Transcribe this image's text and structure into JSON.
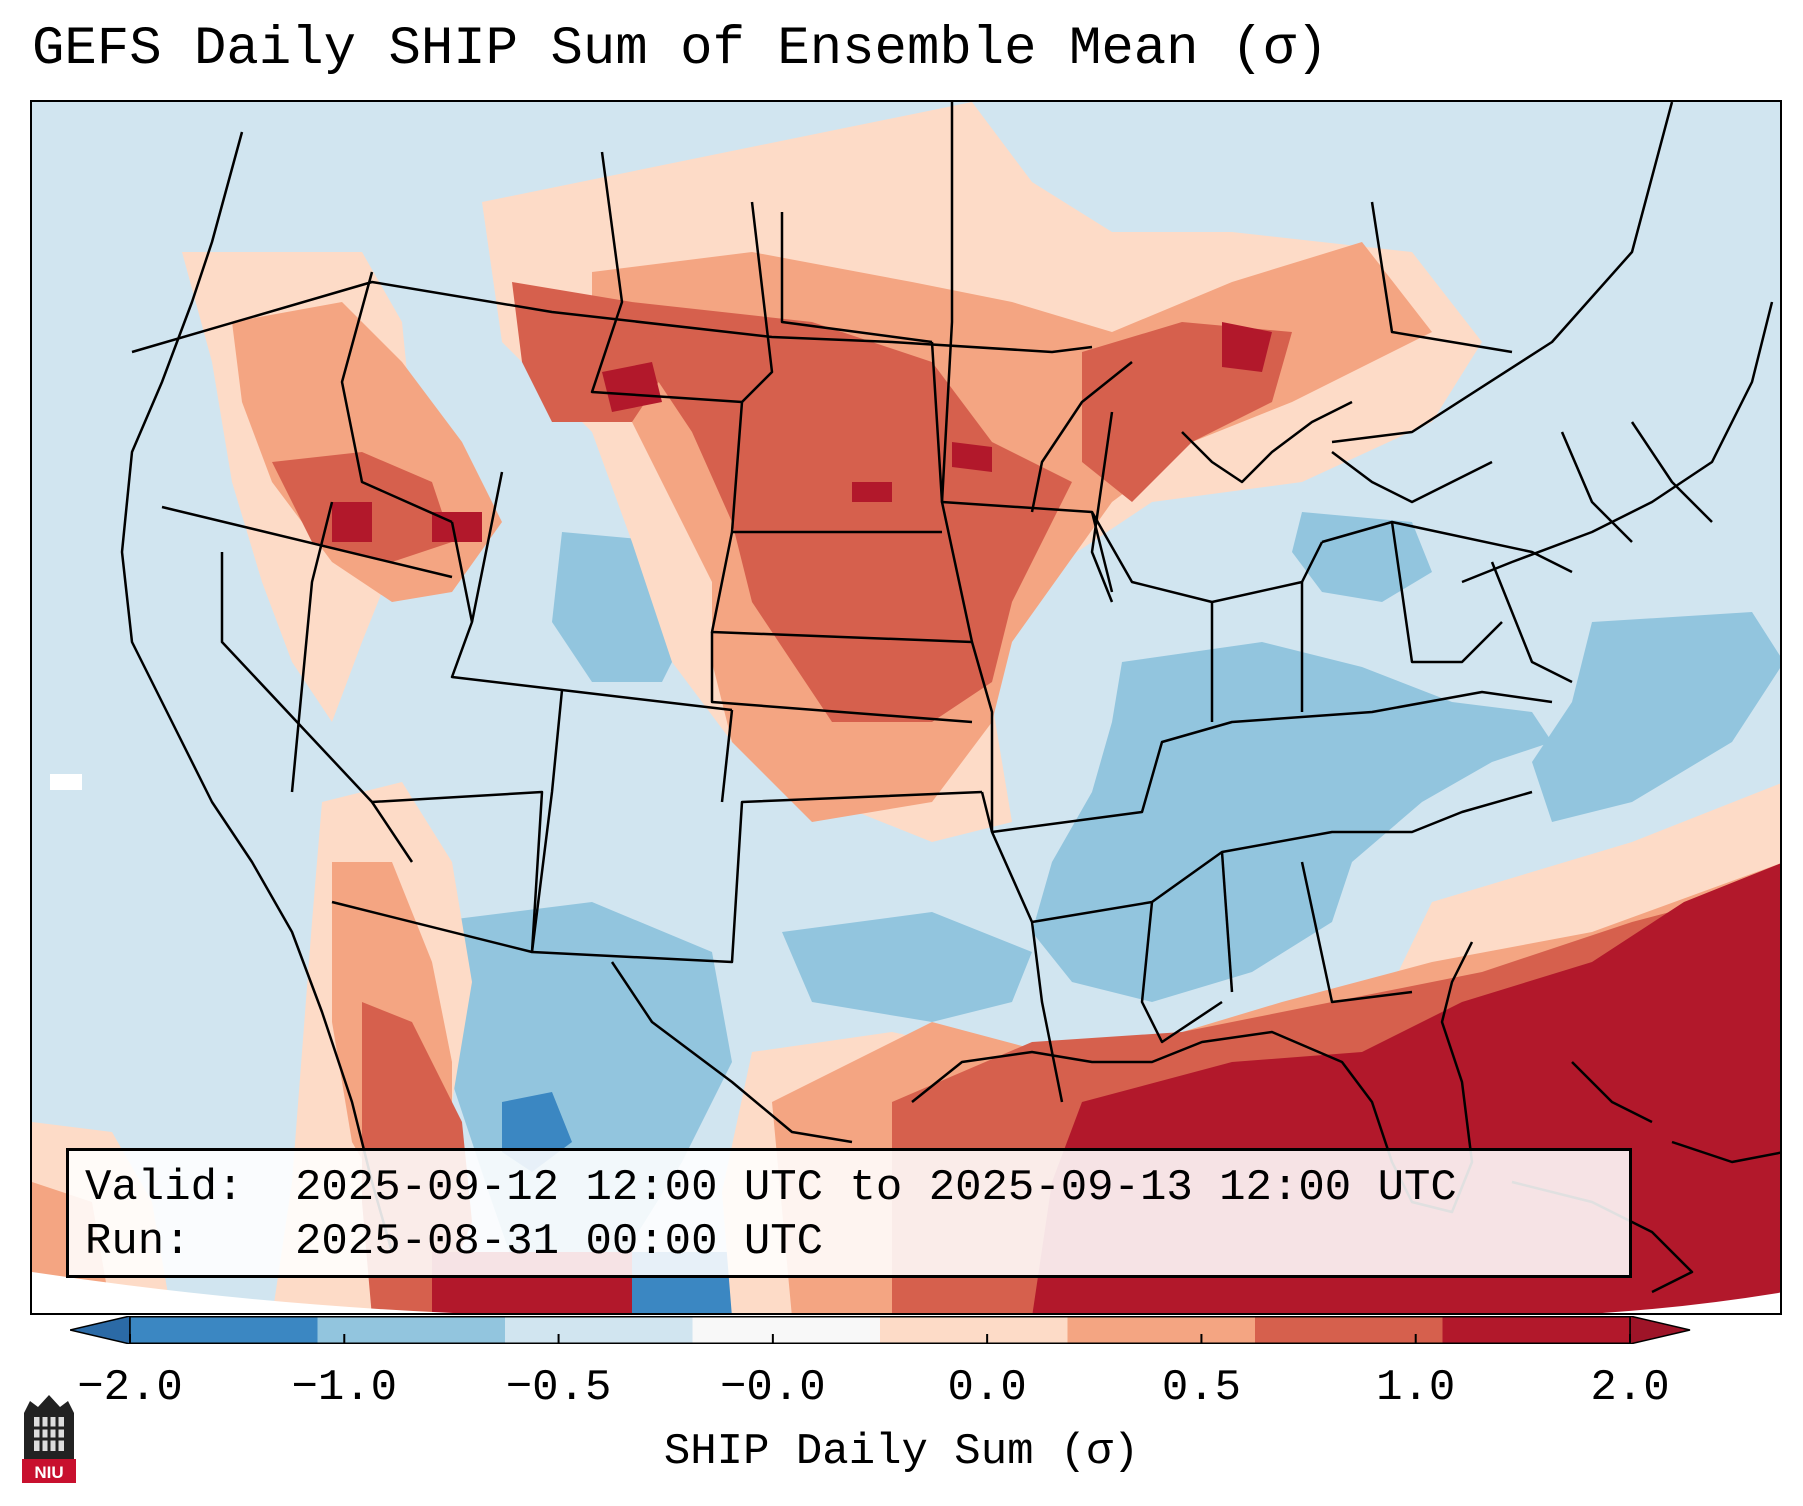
{
  "title": "GEFS Daily SHIP Sum of Ensemble Mean (σ)",
  "info": {
    "valid_label": "Valid:",
    "valid_value": "2025-09-12 12:00 UTC to 2025-09-13 12:00 UTC",
    "run_label": "Run:",
    "run_value": "2025-08-31 00:00 UTC"
  },
  "colorbar": {
    "label": "SHIP Daily Sum (σ)",
    "ticks": [
      "−2.0",
      "−1.0",
      "−0.5",
      "−0.0",
      "0.0",
      "0.5",
      "1.0",
      "2.0"
    ],
    "colors": [
      "#3b87c2",
      "#92c5de",
      "#d1e5f0",
      "#f8f8f8",
      "#fddbc7",
      "#f4a582",
      "#d6604d",
      "#b2182b"
    ],
    "extend_low_color": "#2b6aa6",
    "extend_high_color": "#9e1428"
  },
  "regions": [
    {
      "name": "Northern Plains",
      "anomaly": "positive (0.5 to 1.0)"
    },
    {
      "name": "Upper Midwest / Great Lakes",
      "anomaly": "positive (0.5 to 1.0)"
    },
    {
      "name": "Gulf of Mexico / Western Atlantic",
      "anomaly": "strongly positive (> 2.0)"
    },
    {
      "name": "Southeast / Tennessee Valley",
      "anomaly": "negative (-1.0 to -0.5)"
    },
    {
      "name": "Southwest / Northern Mexico",
      "anomaly": "negative (-1.0 to -0.5)"
    }
  ],
  "logo": {
    "text": "NIU",
    "color": "#c8102e"
  }
}
